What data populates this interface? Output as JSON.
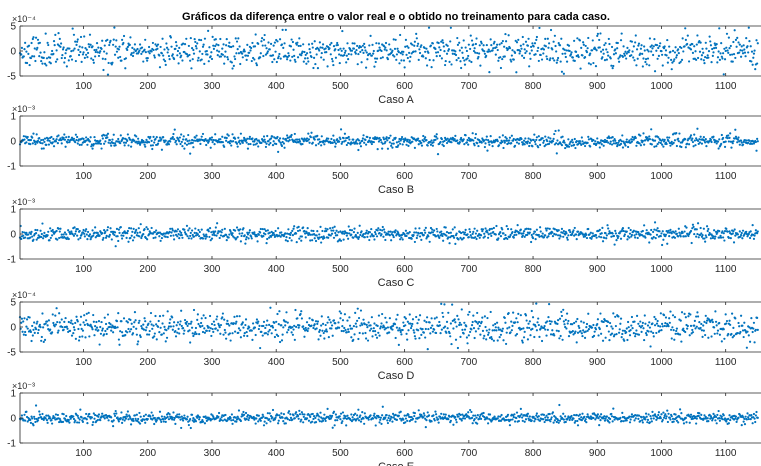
{
  "figure": {
    "title": "Gráficos  da diferença entre o valor real e o obtido no treinamento para cada caso."
  },
  "style": {
    "marker_color": "#0072BD",
    "axis_color": "#262626",
    "background": "#ffffff"
  },
  "chart_data": [
    {
      "type": "scatter",
      "xlabel": "Caso A",
      "ylabel": "",
      "exponent_label": "×10⁻⁴",
      "xlim": [
        1,
        1155
      ],
      "ylim": [
        -5,
        5
      ],
      "x_ticks": [
        100,
        200,
        300,
        400,
        500,
        600,
        700,
        800,
        900,
        1000,
        1100
      ],
      "y_ticks": [
        -5,
        0,
        5
      ],
      "y_tick_labels": [
        "-5",
        "0",
        "5"
      ],
      "series_description_values": {
        "x_range": [
          1,
          1150
        ],
        "typical_spread": 1.5,
        "max_abs": 4.8
      },
      "seed": 11
    },
    {
      "type": "scatter",
      "xlabel": "Caso B",
      "ylabel": "",
      "exponent_label": "×10⁻³",
      "xlim": [
        1,
        1155
      ],
      "ylim": [
        -1,
        1
      ],
      "x_ticks": [
        100,
        200,
        300,
        400,
        500,
        600,
        700,
        800,
        900,
        1000,
        1100
      ],
      "y_ticks": [
        -1,
        0,
        1
      ],
      "y_tick_labels": [
        "-1",
        "0",
        "1"
      ],
      "series_description_values": {
        "x_range": [
          1,
          1150
        ],
        "typical_spread": 0.12,
        "max_abs": 0.55
      },
      "seed": 23
    },
    {
      "type": "scatter",
      "xlabel": "Caso C",
      "ylabel": "",
      "exponent_label": "×10⁻³",
      "xlim": [
        1,
        1155
      ],
      "ylim": [
        -1,
        1
      ],
      "x_ticks": [
        100,
        200,
        300,
        400,
        500,
        600,
        700,
        800,
        900,
        1000,
        1100
      ],
      "y_ticks": [
        -1,
        0,
        1
      ],
      "y_tick_labels": [
        "-1",
        "0",
        "1"
      ],
      "series_description_values": {
        "x_range": [
          1,
          1150
        ],
        "typical_spread": 0.13,
        "max_abs": 0.5
      },
      "seed": 37
    },
    {
      "type": "scatter",
      "xlabel": "Caso D",
      "ylabel": "",
      "exponent_label": "×10⁻⁴",
      "xlim": [
        1,
        1155
      ],
      "ylim": [
        -5,
        5
      ],
      "x_ticks": [
        100,
        200,
        300,
        400,
        500,
        600,
        700,
        800,
        900,
        1000,
        1100
      ],
      "y_ticks": [
        -5,
        0,
        5
      ],
      "y_tick_labels": [
        "-5",
        "0",
        "5"
      ],
      "series_description_values": {
        "x_range": [
          1,
          1150
        ],
        "typical_spread": 1.4,
        "max_abs": 4.7
      },
      "seed": 53
    },
    {
      "type": "scatter",
      "xlabel": "Caso E",
      "ylabel": "",
      "exponent_label": "×10⁻³",
      "xlim": [
        1,
        1155
      ],
      "ylim": [
        -1,
        1
      ],
      "x_ticks": [
        100,
        200,
        300,
        400,
        500,
        600,
        700,
        800,
        900,
        1000,
        1100
      ],
      "y_ticks": [
        -1,
        0,
        1
      ],
      "y_tick_labels": [
        "-1",
        "0",
        "1"
      ],
      "series_description_values": {
        "x_range": [
          1,
          1150
        ],
        "typical_spread": 0.11,
        "max_abs": 0.9
      },
      "seed": 71
    }
  ]
}
